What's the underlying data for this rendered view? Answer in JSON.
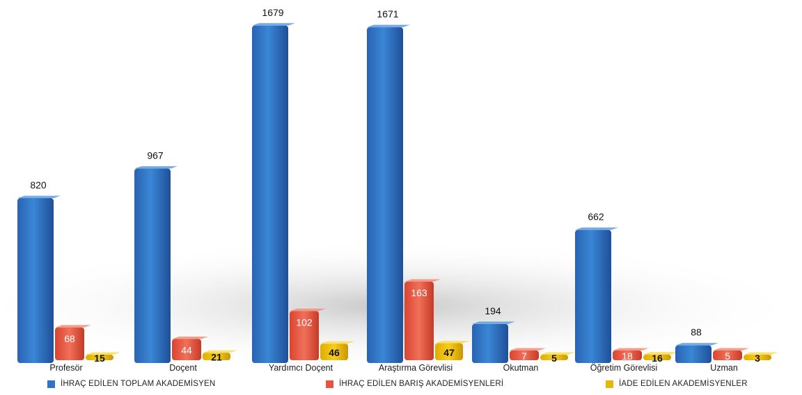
{
  "chart_data": {
    "type": "bar",
    "categories": [
      "Profesör",
      "Doçent",
      "Yardımcı Doçent",
      "Araştırma Görevlisi",
      "Okutman",
      "Öğretim Görevlisi",
      "Uzman"
    ],
    "series": [
      {
        "name": "İHRAÇ EDİLEN TOPLAM AKADEMİSYEN",
        "color": "#2f74c6",
        "values": [
          820,
          967,
          1679,
          1671,
          194,
          662,
          88
        ]
      },
      {
        "name": "İHRAÇ EDİLEN BARIŞ AKADEMİSYENLERİ",
        "color": "#e8553f",
        "values": [
          68,
          44,
          102,
          163,
          7,
          18,
          5
        ]
      },
      {
        "name": "İADE EDİLEN AKADEMİSYENLER",
        "color": "#e6b800",
        "values": [
          15,
          21,
          46,
          47,
          5,
          16,
          3
        ]
      }
    ],
    "grid": false,
    "legend_position": "bottom"
  }
}
